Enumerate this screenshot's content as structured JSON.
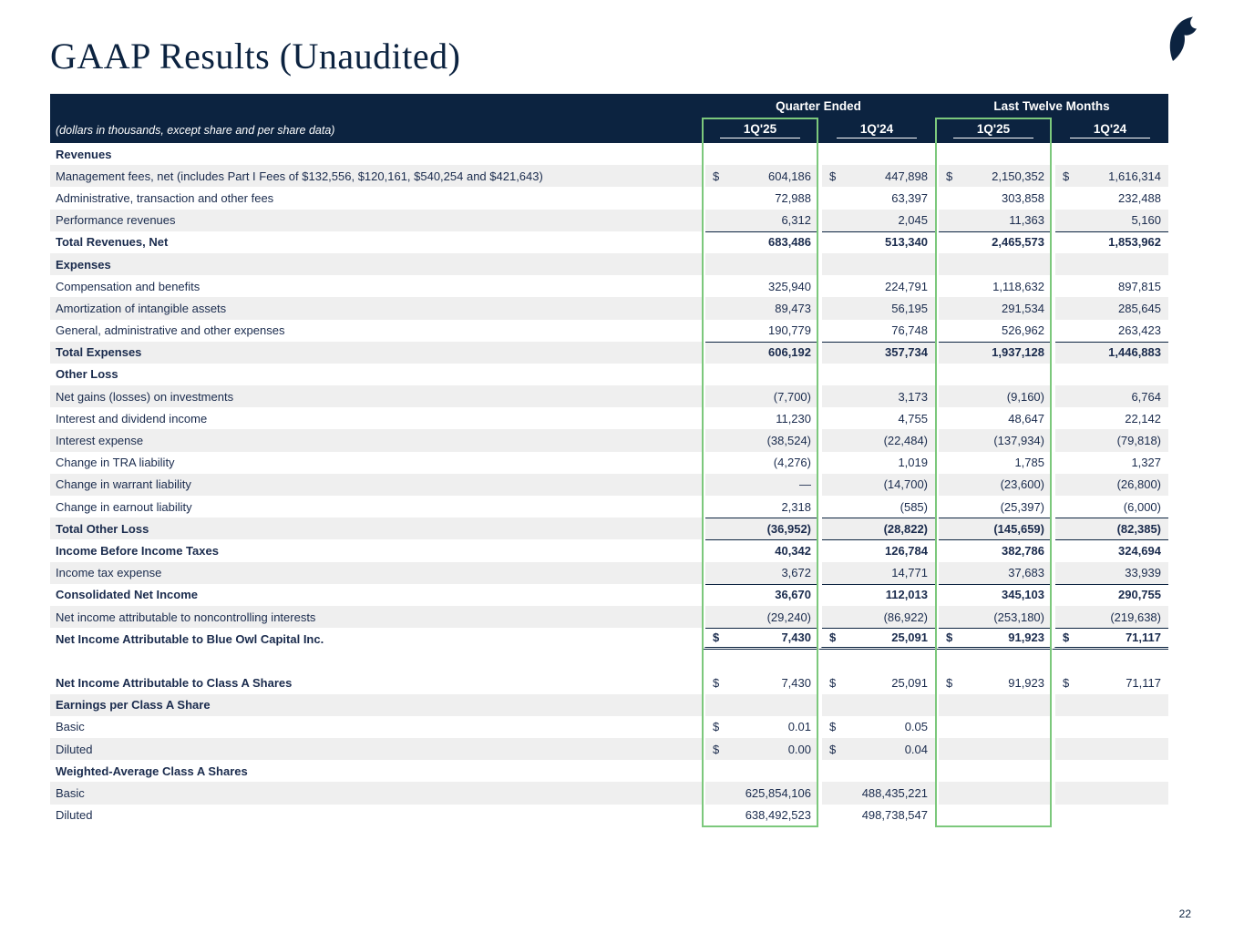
{
  "page": {
    "title": "GAAP Results (Unaudited)",
    "page_number": "22"
  },
  "colors": {
    "navy": "#0C2340",
    "text": "#1A2B4D",
    "stripe": "#EFEFEF",
    "green": "#7CC87C"
  },
  "table": {
    "group_headers": [
      "Quarter Ended",
      "Last Twelve Months"
    ],
    "subtitle": "(dollars in thousands, except share and per share data)",
    "column_headers": [
      "1Q'25",
      "1Q'24",
      "1Q'25",
      "1Q'24"
    ],
    "currency_symbol": "$",
    "rows": [
      {
        "label": "Revenues",
        "type": "section"
      },
      {
        "label": "Management fees, net (includes Part I Fees of $132,556, $120,161, $540,254 and $421,643)",
        "type": "data",
        "dollar": true,
        "values": [
          "604,186",
          "447,898",
          "2,150,352",
          "1,616,314"
        ]
      },
      {
        "label": "Administrative, transaction and other fees",
        "type": "data",
        "values": [
          "72,988",
          "63,397",
          "303,858",
          "232,488"
        ]
      },
      {
        "label": "Performance revenues",
        "type": "data",
        "values": [
          "6,312",
          "2,045",
          "11,363",
          "5,160"
        ]
      },
      {
        "label": "Total Revenues, Net",
        "type": "total",
        "topline": true,
        "values": [
          "683,486",
          "513,340",
          "2,465,573",
          "1,853,962"
        ]
      },
      {
        "label": "Expenses",
        "type": "section"
      },
      {
        "label": "Compensation and benefits",
        "type": "data",
        "values": [
          "325,940",
          "224,791",
          "1,118,632",
          "897,815"
        ]
      },
      {
        "label": "Amortization of intangible assets",
        "type": "data",
        "values": [
          "89,473",
          "56,195",
          "291,534",
          "285,645"
        ]
      },
      {
        "label": "General, administrative and other expenses",
        "type": "data",
        "values": [
          "190,779",
          "76,748",
          "526,962",
          "263,423"
        ]
      },
      {
        "label": "Total Expenses",
        "type": "total",
        "topline": true,
        "values": [
          "606,192",
          "357,734",
          "1,937,128",
          "1,446,883"
        ]
      },
      {
        "label": "Other Loss",
        "type": "section"
      },
      {
        "label": "Net gains (losses) on investments",
        "type": "data",
        "values": [
          "(7,700)",
          "3,173",
          "(9,160)",
          "6,764"
        ]
      },
      {
        "label": "Interest and dividend income",
        "type": "data",
        "values": [
          "11,230",
          "4,755",
          "48,647",
          "22,142"
        ]
      },
      {
        "label": "Interest expense",
        "type": "data",
        "values": [
          "(38,524)",
          "(22,484)",
          "(137,934)",
          "(79,818)"
        ]
      },
      {
        "label": "Change in TRA liability",
        "type": "data",
        "values": [
          "(4,276)",
          "1,019",
          "1,785",
          "1,327"
        ]
      },
      {
        "label": "Change in warrant liability",
        "type": "data",
        "values": [
          "—",
          "(14,700)",
          "(23,600)",
          "(26,800)"
        ]
      },
      {
        "label": "Change in earnout liability",
        "type": "data",
        "values": [
          "2,318",
          "(585)",
          "(25,397)",
          "(6,000)"
        ]
      },
      {
        "label": "Total Other Loss",
        "type": "total",
        "topline": true,
        "values": [
          "(36,952)",
          "(28,822)",
          "(145,659)",
          "(82,385)"
        ]
      },
      {
        "label": "Income Before Income Taxes",
        "type": "total",
        "topline": true,
        "values": [
          "40,342",
          "126,784",
          "382,786",
          "324,694"
        ]
      },
      {
        "label": "Income tax expense",
        "type": "data",
        "values": [
          "3,672",
          "14,771",
          "37,683",
          "33,939"
        ]
      },
      {
        "label": "Consolidated Net Income",
        "type": "total",
        "topline": true,
        "values": [
          "36,670",
          "112,013",
          "345,103",
          "290,755"
        ]
      },
      {
        "label": "Net income attributable to noncontrolling interests",
        "type": "data",
        "values": [
          "(29,240)",
          "(86,922)",
          "(253,180)",
          "(219,638)"
        ]
      },
      {
        "label": "Net Income Attributable to Blue Owl Capital Inc.",
        "type": "total",
        "topline": true,
        "dollar": true,
        "double_underline": true,
        "values": [
          "7,430",
          "25,091",
          "91,923",
          "71,117"
        ]
      },
      {
        "type": "spacer"
      },
      {
        "label": "Net Income Attributable to Class A Shares",
        "type": "labelbold",
        "dollar": true,
        "values": [
          "7,430",
          "25,091",
          "91,923",
          "71,117"
        ]
      },
      {
        "label": "Earnings per Class A Share",
        "type": "section"
      },
      {
        "label": "Basic",
        "type": "data",
        "dollar": true,
        "values": [
          "0.01",
          "0.05",
          "",
          ""
        ]
      },
      {
        "label": "Diluted",
        "type": "data",
        "dollar": true,
        "values": [
          "0.00",
          "0.04",
          "",
          ""
        ]
      },
      {
        "label": "Weighted-Average Class A Shares",
        "type": "section"
      },
      {
        "label": "Basic",
        "type": "data",
        "values": [
          "625,854,106",
          "488,435,221",
          "",
          ""
        ]
      },
      {
        "label": "Diluted",
        "type": "data",
        "values": [
          "638,492,523",
          "498,738,547",
          "",
          ""
        ]
      }
    ]
  }
}
